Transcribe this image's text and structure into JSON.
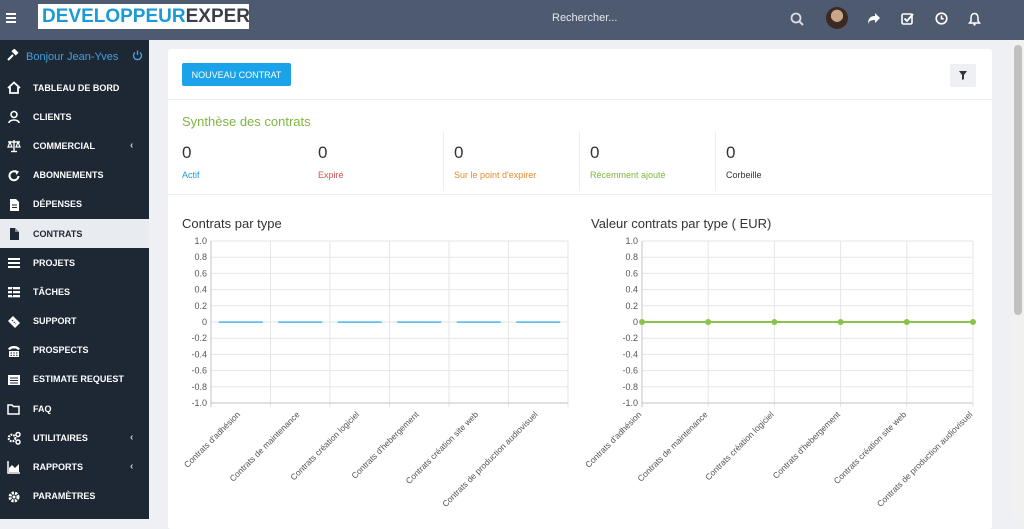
{
  "topbar": {
    "logo_part1": "DEVELOPPEUR",
    "logo_part2": "EXPERT",
    "search_placeholder": "Rechercher...",
    "icons": [
      "menu-icon",
      "search-icon",
      "share-icon",
      "checkbox-icon",
      "clock-icon",
      "bell-icon"
    ]
  },
  "sidebar": {
    "greeting": "Bonjour Jean-Yves",
    "items": [
      {
        "label": "TABLEAU DE BORD",
        "icon": "home-icon"
      },
      {
        "label": "CLIENTS",
        "icon": "user-icon"
      },
      {
        "label": "COMMERCIAL",
        "icon": "balance-icon",
        "chevron": "‹"
      },
      {
        "label": "ABONNEMENTS",
        "icon": "refresh-icon"
      },
      {
        "label": "DÉPENSES",
        "icon": "document-icon"
      },
      {
        "label": "CONTRATS",
        "icon": "file-icon",
        "active": true
      },
      {
        "label": "PROJETS",
        "icon": "bars-icon"
      },
      {
        "label": "TÂCHES",
        "icon": "tasks-icon"
      },
      {
        "label": "SUPPORT",
        "icon": "ticket-icon"
      },
      {
        "label": "PROSPECTS",
        "icon": "tty-icon"
      },
      {
        "label": "ESTIMATE REQUEST",
        "icon": "list-icon"
      },
      {
        "label": "FAQ",
        "icon": "folder-icon"
      },
      {
        "label": "UTILITAIRES",
        "icon": "cogs-icon",
        "chevron": "‹"
      },
      {
        "label": "RAPPORTS",
        "icon": "area-chart-icon",
        "chevron": "‹"
      },
      {
        "label": "PARAMÈTRES",
        "icon": "gear-icon"
      }
    ]
  },
  "main": {
    "new_contract_label": "NOUVEAU CONTRAT",
    "summary_title": "Synthèse des contrats",
    "stats": [
      {
        "value": "0",
        "label": "Actif",
        "color": "#1a9bd7"
      },
      {
        "value": "0",
        "label": "Expiré",
        "color": "#d9534f"
      },
      {
        "value": "0",
        "label": "Sur le point d'expirer",
        "color": "#e58a2b"
      },
      {
        "value": "0",
        "label": "Récemment ajouté",
        "color": "#7fb63f"
      },
      {
        "value": "0",
        "label": "Corbeille",
        "color": "#333333"
      }
    ]
  },
  "chart_data": [
    {
      "type": "bar",
      "title": "Contrats par type",
      "categories": [
        "Contrats d'adhésion",
        "Contrats de maintenance",
        "Contrats création logiciel",
        "Contrats d'hebergement",
        "Contrats création site web",
        "Contrats de production audiovisuel"
      ],
      "values": [
        0,
        0,
        0,
        0,
        0,
        0
      ],
      "ylim": [
        -1.0,
        1.0
      ],
      "yticks": [
        "1.0",
        "0.8",
        "0.6",
        "0.4",
        "0.2",
        "0",
        "-0.2",
        "-0.4",
        "-0.6",
        "-0.8",
        "-1.0"
      ],
      "color": "#1aa3e8",
      "grid": true
    },
    {
      "type": "line",
      "title": "Valeur contrats par type ( EUR)",
      "categories": [
        "Contrats d'adhésion",
        "Contrats de maintenance",
        "Contrats création logiciel",
        "Contrats d'hebergement",
        "Contrats création site web",
        "Contrats de production audiovisuel"
      ],
      "values": [
        0,
        0,
        0,
        0,
        0,
        0
      ],
      "ylim": [
        -1.0,
        1.0
      ],
      "yticks": [
        "1.0",
        "0.8",
        "0.6",
        "0.4",
        "0.2",
        "0",
        "-0.2",
        "-0.4",
        "-0.6",
        "-0.8",
        "-1.0"
      ],
      "color": "#8bc34a",
      "grid": true
    }
  ]
}
